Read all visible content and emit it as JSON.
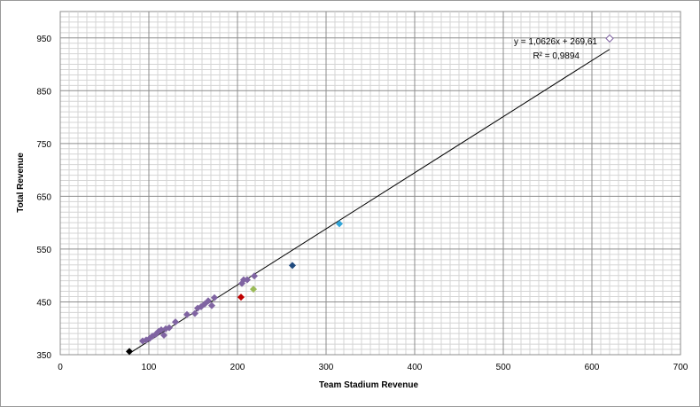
{
  "chart_data": {
    "type": "scatter",
    "xlabel": "Team Stadium Revenue",
    "ylabel": "Total Revenue",
    "xlim": [
      0,
      700
    ],
    "ylim": [
      350,
      1000
    ],
    "x_ticks": [
      0,
      100,
      200,
      300,
      400,
      500,
      600,
      700
    ],
    "y_ticks": [
      350,
      450,
      550,
      650,
      750,
      850,
      950
    ],
    "x_tick_labels": [
      "0",
      "100",
      "200",
      "300",
      "400",
      "500",
      "600",
      "700"
    ],
    "y_tick_labels": [
      "350",
      "450",
      "550",
      "650",
      "750",
      "850",
      "950"
    ],
    "grid": true,
    "points": [
      {
        "x": 78,
        "y": 356,
        "color": "#000000",
        "outline": false
      },
      {
        "x": 93,
        "y": 376,
        "color": "#8064a2",
        "outline": false
      },
      {
        "x": 97,
        "y": 378,
        "color": "#8064a2",
        "outline": false
      },
      {
        "x": 101,
        "y": 381,
        "color": "#8064a2",
        "outline": false
      },
      {
        "x": 104,
        "y": 385,
        "color": "#8064a2",
        "outline": false
      },
      {
        "x": 108,
        "y": 389,
        "color": "#8064a2",
        "outline": false
      },
      {
        "x": 111,
        "y": 394,
        "color": "#8064a2",
        "outline": false
      },
      {
        "x": 114,
        "y": 397,
        "color": "#8064a2",
        "outline": false
      },
      {
        "x": 117,
        "y": 387,
        "color": "#8064a2",
        "outline": false
      },
      {
        "x": 119,
        "y": 399,
        "color": "#8064a2",
        "outline": false
      },
      {
        "x": 123,
        "y": 401,
        "color": "#8064a2",
        "outline": false
      },
      {
        "x": 130,
        "y": 412,
        "color": "#8064a2",
        "outline": false
      },
      {
        "x": 143,
        "y": 426,
        "color": "#8064a2",
        "outline": false
      },
      {
        "x": 152,
        "y": 428,
        "color": "#8064a2",
        "outline": false
      },
      {
        "x": 155,
        "y": 438,
        "color": "#8064a2",
        "outline": false
      },
      {
        "x": 159,
        "y": 441,
        "color": "#8064a2",
        "outline": false
      },
      {
        "x": 163,
        "y": 446,
        "color": "#8064a2",
        "outline": false
      },
      {
        "x": 167,
        "y": 452,
        "color": "#8064a2",
        "outline": false
      },
      {
        "x": 171,
        "y": 443,
        "color": "#8064a2",
        "outline": false
      },
      {
        "x": 174,
        "y": 458,
        "color": "#8064a2",
        "outline": false
      },
      {
        "x": 204,
        "y": 459,
        "color": "#c00000",
        "outline": false
      },
      {
        "x": 205,
        "y": 485,
        "color": "#8064a2",
        "outline": false
      },
      {
        "x": 207,
        "y": 492,
        "color": "#8064a2",
        "outline": false
      },
      {
        "x": 211,
        "y": 492,
        "color": "#8064a2",
        "outline": false
      },
      {
        "x": 218,
        "y": 474,
        "color": "#9bbb59",
        "outline": false
      },
      {
        "x": 219,
        "y": 499,
        "color": "#8064a2",
        "outline": false
      },
      {
        "x": 262,
        "y": 519,
        "color": "#1f497d",
        "outline": false
      },
      {
        "x": 315,
        "y": 598,
        "color": "#31a5d8",
        "outline": false
      },
      {
        "x": 620,
        "y": 949,
        "color": "#8064a2",
        "outline": true
      }
    ],
    "trendline": {
      "slope": 1.0626,
      "intercept": 269.61,
      "x_range": [
        78,
        620
      ],
      "equation_label": "y = 1,0626x + 269,61",
      "r2_label": "R² = 0,9894"
    }
  }
}
